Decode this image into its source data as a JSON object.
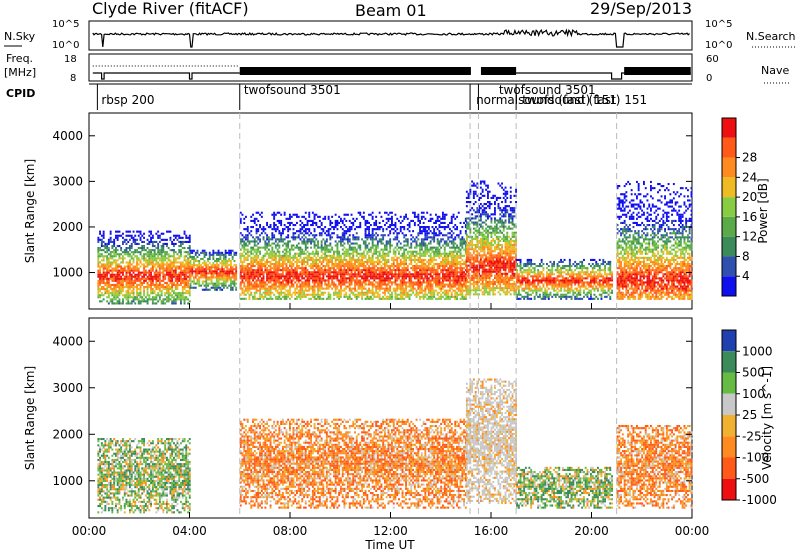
{
  "header": {
    "station": "Clyde River (fitACF)",
    "beam": "Beam 01",
    "date": "29/Sep/2013"
  },
  "summary": {
    "nsky_label": "N.Sky",
    "nsky_ticks": [
      "10^5",
      "10^0"
    ],
    "nsearch_label": "N.Search",
    "nsearch_ticks": [
      "10^5",
      "10^0"
    ],
    "freq_label": "Freq.",
    "freq_unit": "[MHz]",
    "freq_ticks": [
      "18",
      "8"
    ],
    "nave_label": "Nave",
    "nave_ticks": [
      "60",
      "0"
    ],
    "cpid_label": "CPID",
    "cpid_entries": [
      {
        "label": "rbsp 200",
        "time": "00:20"
      },
      {
        "label": "twofsound 3501",
        "time": "06:05"
      },
      {
        "label": "twofsound 3501",
        "time": "15:50"
      },
      {
        "label": "normalsound (fast) 151",
        "time": "15:10"
      },
      {
        "label": "twofsound (fast) 151",
        "time": "17:05"
      }
    ]
  },
  "chart_data": [
    {
      "type": "heatmap",
      "parameter": "Power",
      "ylabel": "Slant Range [km]",
      "ylim": [
        200,
        4500
      ],
      "y_ticks": [
        1000,
        2000,
        3000,
        4000
      ],
      "xlim_hours": [
        0,
        24
      ],
      "colorbar_label": "Power [dB]",
      "colorbar_ticks": [
        "4",
        "8",
        "12",
        "16",
        "20",
        "24",
        "28"
      ],
      "colorbar_colors": [
        "#1010ee",
        "#3050b0",
        "#3a8a5a",
        "#5aaa4a",
        "#88cc44",
        "#eebb22",
        "#ff8a20",
        "#ff5a18",
        "#ee1010"
      ],
      "echo_regions": [
        {
          "start": "00:20",
          "end": "04:00",
          "range_km": [
            300,
            1900
          ],
          "peak_km": 900
        },
        {
          "start": "04:00",
          "end": "05:50",
          "range_km": [
            600,
            1500
          ],
          "peak_km": 1000
        },
        {
          "start": "06:00",
          "end": "15:00",
          "range_km": [
            400,
            2300
          ],
          "peak_km": 900
        },
        {
          "start": "15:00",
          "end": "17:00",
          "range_km": [
            500,
            3000
          ],
          "peak_km": 1100
        },
        {
          "start": "17:00",
          "end": "20:50",
          "range_km": [
            400,
            1300
          ],
          "peak_km": 800
        },
        {
          "start": "21:00",
          "end": "24:00",
          "range_km": [
            400,
            3000
          ],
          "peak_km": 800
        }
      ]
    },
    {
      "type": "heatmap",
      "parameter": "Velocity",
      "ylabel": "Slant Range [km]",
      "xlabel": "Time UT",
      "ylim": [
        200,
        4500
      ],
      "y_ticks": [
        1000,
        2000,
        3000,
        4000
      ],
      "xlim_hours": [
        0,
        24
      ],
      "x_ticks": [
        "00:00",
        "04:00",
        "08:00",
        "12:00",
        "16:00",
        "20:00",
        "00:00"
      ],
      "colorbar_label": "Velocity [m s^-1]",
      "colorbar_ticks": [
        "1000",
        "500",
        "100",
        "25",
        "-25",
        "-100",
        "-500",
        "-1000"
      ],
      "colorbar_colors": [
        "#2040b0",
        "#3a8a5a",
        "#66bb44",
        "#c8c8c8",
        "#f0b030",
        "#ff8a20",
        "#ff5a18",
        "#ee1010"
      ],
      "echo_regions": [
        {
          "start": "00:20",
          "end": "04:00",
          "range_km": [
            300,
            1900
          ],
          "dominant": "green/grey"
        },
        {
          "start": "06:00",
          "end": "15:00",
          "range_km": [
            400,
            2300
          ],
          "dominant": "orange"
        },
        {
          "start": "15:00",
          "end": "17:00",
          "range_km": [
            500,
            3200
          ],
          "dominant": "grey"
        },
        {
          "start": "17:00",
          "end": "20:50",
          "range_km": [
            400,
            1300
          ],
          "dominant": "green"
        },
        {
          "start": "21:00",
          "end": "24:00",
          "range_km": [
            400,
            2200
          ],
          "dominant": "orange/grey"
        }
      ]
    }
  ]
}
